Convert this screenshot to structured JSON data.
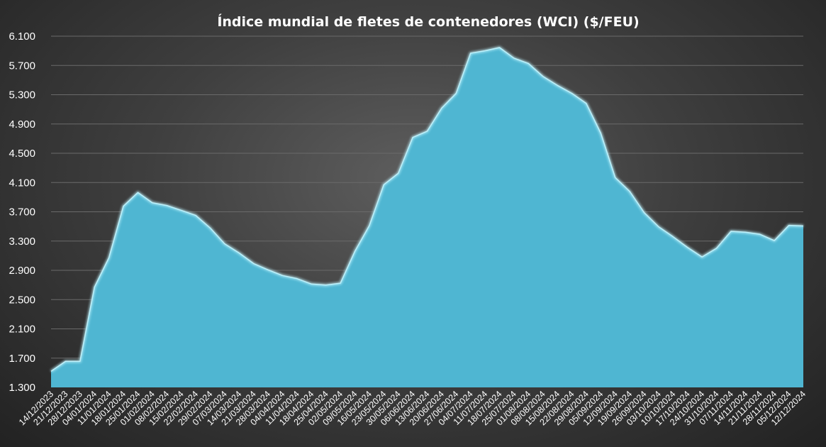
{
  "colors": {
    "area_fill": "#4fb6d2",
    "area_edge": "#bdf1fb",
    "grid": "#6a6a6a",
    "text": "#ffffff"
  },
  "chart_data": {
    "type": "area",
    "title": "Índice mundial de fletes de contenedores (WCI) ($/FEU)",
    "xlabel": "",
    "ylabel": "",
    "ylim": [
      1300,
      6100
    ],
    "yticks": [
      1300,
      1700,
      2100,
      2500,
      2900,
      3300,
      3700,
      4100,
      4500,
      4900,
      5300,
      5700,
      6100
    ],
    "ytick_labels": [
      "1.300",
      "1.700",
      "2.100",
      "2.500",
      "2.900",
      "3.300",
      "3.700",
      "4.100",
      "4.500",
      "4.900",
      "5.300",
      "5.700",
      "6.100"
    ],
    "grid": true,
    "legend": "none",
    "categories": [
      "14/12/2023",
      "21/12/2023",
      "28/12/2023",
      "04/01/2024",
      "11/01/2024",
      "18/01/2024",
      "25/01/2024",
      "01/02/2024",
      "08/02/2024",
      "15/02/2024",
      "22/02/2024",
      "29/02/2024",
      "07/03/2024",
      "14/03/2024",
      "21/03/2024",
      "28/03/2024",
      "04/04/2024",
      "11/04/2024",
      "18/04/2024",
      "25/04/2024",
      "02/05/2024",
      "09/05/2024",
      "16/05/2024",
      "23/05/2024",
      "30/05/2024",
      "06/06/2024",
      "13/06/2024",
      "20/06/2024",
      "27/06/2024",
      "04/07/2024",
      "11/07/2024",
      "18/07/2024",
      "25/07/2024",
      "01/08/2024",
      "08/08/2024",
      "15/08/2024",
      "22/08/2024",
      "29/08/2024",
      "05/09/2024",
      "12/09/2024",
      "19/09/2024",
      "26/09/2024",
      "03/10/2024",
      "10/10/2024",
      "17/10/2024",
      "24/10/2024",
      "31/10/2024",
      "07/11/2024",
      "14/11/2024",
      "21/11/2024",
      "28/11/2024",
      "05/12/2024",
      "12/12/2024"
    ],
    "series": [
      {
        "values": [
          1521,
          1656,
          1656,
          2670,
          3072,
          3777,
          3964,
          3824,
          3786,
          3720,
          3651,
          3479,
          3262,
          3138,
          2993,
          2907,
          2829,
          2787,
          2713,
          2699,
          2724,
          3159,
          3511,
          4070,
          4226,
          4716,
          4801,
          5117,
          5319,
          5868,
          5901,
          5945,
          5800,
          5727,
          5551,
          5428,
          5319,
          5181,
          4775,
          4168,
          3979,
          3689,
          3495,
          3359,
          3213,
          3083,
          3202,
          3433,
          3421,
          3393,
          3307,
          3515,
          3507
        ]
      }
    ]
  }
}
